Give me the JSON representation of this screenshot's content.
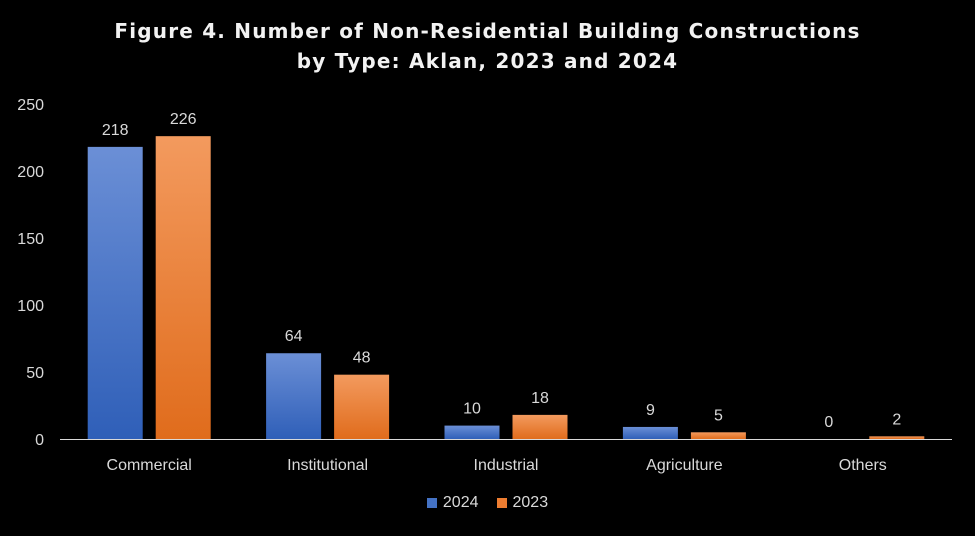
{
  "chart_data": {
    "type": "bar",
    "title_line1": "Figure 4. Number of Non-Residential Building Constructions",
    "title_line2": "by Type: Aklan, 2023 and 2024",
    "categories": [
      "Commercial",
      "Institutional",
      "Industrial",
      "Agriculture",
      "Others"
    ],
    "series": [
      {
        "name": "2024",
        "values": [
          218,
          64,
          10,
          9,
          0
        ],
        "color": "#4472c4"
      },
      {
        "name": "2023",
        "values": [
          226,
          48,
          18,
          5,
          2
        ],
        "color": "#ed7d31"
      }
    ],
    "ylim": [
      0,
      250
    ],
    "yticks": [
      0,
      50,
      100,
      150,
      200,
      250
    ],
    "grid": false,
    "legend": "bottom",
    "xlabel": "",
    "ylabel": ""
  }
}
